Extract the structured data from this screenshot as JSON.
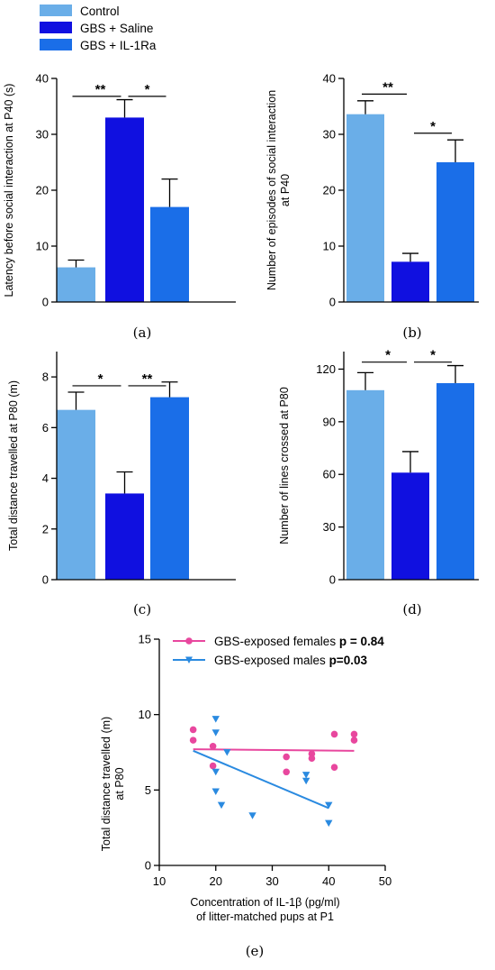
{
  "legend": {
    "items": [
      {
        "label": "Control",
        "color": "#6aaee8"
      },
      {
        "label": "GBS + Saline",
        "color": "#1010e0"
      },
      {
        "label": "GBS + IL-1Ra",
        "color": "#1a6ee8"
      }
    ]
  },
  "chart_data": [
    {
      "panel": "(a)",
      "type": "bar",
      "categories": [
        "Control",
        "GBS + Saline",
        "GBS + IL-1Ra"
      ],
      "values": [
        6.2,
        33,
        17
      ],
      "errors": [
        1.3,
        3.2,
        5
      ],
      "colors": [
        "#6aaee8",
        "#1010e0",
        "#1a6ee8"
      ],
      "ylabel_lines": [
        "Latency before social interaction at P40 (s)"
      ],
      "ylim": [
        0,
        40
      ],
      "yticks": [
        0,
        10,
        20,
        30,
        40
      ],
      "significance": [
        {
          "pair": [
            0,
            1
          ],
          "label": "**",
          "y": 36.8
        },
        {
          "pair": [
            1,
            2
          ],
          "label": "*",
          "y": 36.8
        }
      ]
    },
    {
      "panel": "(b)",
      "type": "bar",
      "categories": [
        "Control",
        "GBS + Saline",
        "GBS + IL-1Ra"
      ],
      "values": [
        33.6,
        7.2,
        25
      ],
      "errors": [
        2.4,
        1.5,
        4
      ],
      "colors": [
        "#6aaee8",
        "#1010e0",
        "#1a6ee8"
      ],
      "ylabel_lines": [
        "Number of episodes of social interaction",
        "at P40"
      ],
      "ylim": [
        0,
        40
      ],
      "yticks": [
        0,
        10,
        20,
        30,
        40
      ],
      "significance": [
        {
          "pair": [
            0,
            1
          ],
          "label": "**",
          "y": 37.2
        },
        {
          "pair": [
            1,
            2
          ],
          "label": "*",
          "y": 30.2
        }
      ]
    },
    {
      "panel": "(c)",
      "type": "bar",
      "categories": [
        "Control",
        "GBS + Saline",
        "GBS + IL-1Ra"
      ],
      "values": [
        6.7,
        3.4,
        7.2
      ],
      "errors": [
        0.7,
        0.85,
        0.6
      ],
      "colors": [
        "#6aaee8",
        "#1010e0",
        "#1a6ee8"
      ],
      "ylabel_lines": [
        "Total distance travelled at P80 (m)"
      ],
      "ylim": [
        0,
        9
      ],
      "yticks": [
        0,
        2,
        4,
        6,
        8
      ],
      "significance": [
        {
          "pair": [
            0,
            1
          ],
          "label": "*",
          "y": 7.65
        },
        {
          "pair": [
            1,
            2
          ],
          "label": "**",
          "y": 7.65
        }
      ]
    },
    {
      "panel": "(d)",
      "type": "bar",
      "categories": [
        "Control",
        "GBS + Saline",
        "GBS + IL-1Ra"
      ],
      "values": [
        108,
        61,
        112
      ],
      "errors": [
        10,
        12,
        10
      ],
      "colors": [
        "#6aaee8",
        "#1010e0",
        "#1a6ee8"
      ],
      "ylabel_lines": [
        "Number of lines crossed at P80"
      ],
      "ylim": [
        0,
        130
      ],
      "yticks": [
        0,
        30,
        60,
        90,
        120
      ],
      "significance": [
        {
          "pair": [
            0,
            1
          ],
          "label": "*",
          "y": 124
        },
        {
          "pair": [
            1,
            2
          ],
          "label": "*",
          "y": 124
        }
      ]
    },
    {
      "panel": "(e)",
      "type": "scatter",
      "xlabel_lines": [
        "Concentration of IL-1β (pg/ml)",
        "of litter-matched pups at P1"
      ],
      "ylabel_lines": [
        "Total distance travelled (m)",
        "at P80"
      ],
      "xlim": [
        10,
        50
      ],
      "ylim": [
        0,
        15
      ],
      "xticks": [
        10,
        20,
        30,
        40,
        50
      ],
      "yticks": [
        0,
        5,
        10,
        15
      ],
      "series": [
        {
          "name": "GBS-exposed females",
          "pvalue": "p = 0.84",
          "color": "#e8479e",
          "marker": "circle",
          "points": [
            [
              16,
              9.0
            ],
            [
              16,
              8.3
            ],
            [
              19.5,
              7.9
            ],
            [
              19.5,
              6.6
            ],
            [
              32.5,
              7.2
            ],
            [
              32.5,
              6.2
            ],
            [
              37,
              7.4
            ],
            [
              37,
              7.1
            ],
            [
              41,
              8.7
            ],
            [
              41,
              6.5
            ],
            [
              44.5,
              8.7
            ],
            [
              44.5,
              8.3
            ]
          ],
          "fit": [
            [
              16,
              7.7
            ],
            [
              44.5,
              7.6
            ]
          ]
        },
        {
          "name": "GBS-exposed males",
          "pvalue": "p=0.03",
          "color": "#2a8ae0",
          "marker": "triangle-down",
          "points": [
            [
              20,
              9.7
            ],
            [
              20,
              8.8
            ],
            [
              20,
              6.2
            ],
            [
              20,
              4.9
            ],
            [
              21,
              4.0
            ],
            [
              22,
              7.5
            ],
            [
              26.5,
              3.3
            ],
            [
              36,
              6.0
            ],
            [
              36,
              5.6
            ],
            [
              40,
              4.0
            ],
            [
              40,
              2.8
            ]
          ],
          "fit": [
            [
              16,
              7.6
            ],
            [
              40,
              3.8
            ]
          ]
        }
      ]
    }
  ]
}
